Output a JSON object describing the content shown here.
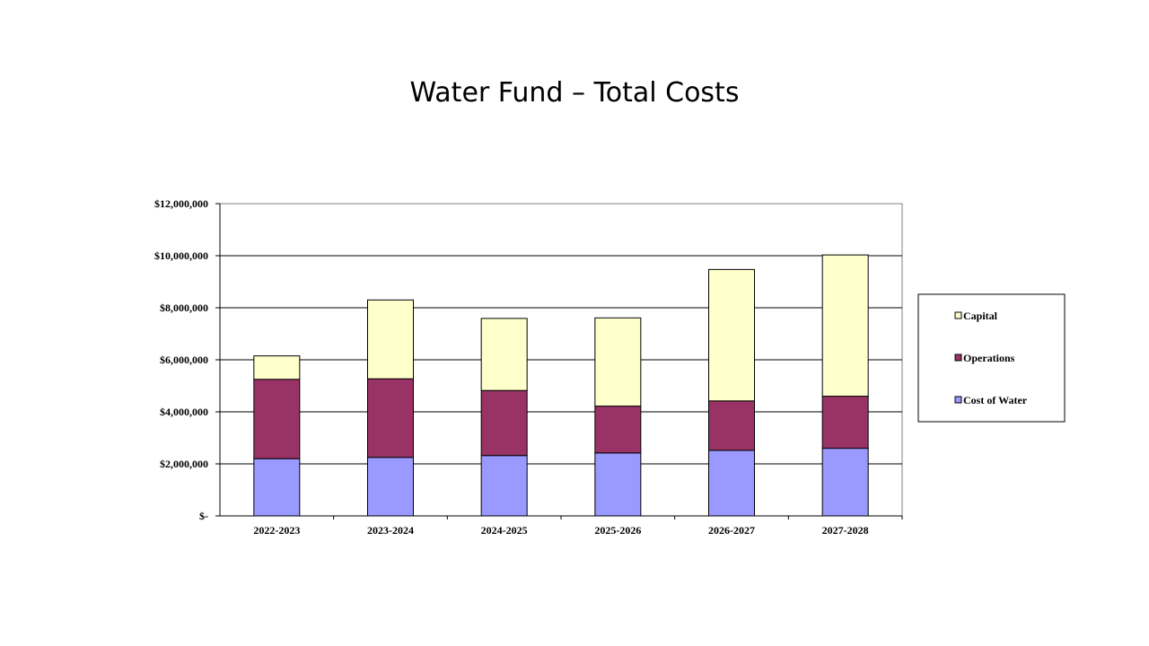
{
  "slide": {
    "title": "Water Fund – Total Costs"
  },
  "chart_data": {
    "type": "bar",
    "stacked": true,
    "categories": [
      "2022-2023",
      "2023-2024",
      "2024-2025",
      "2025-2026",
      "2026-2027",
      "2027-2028"
    ],
    "series": [
      {
        "name": "Cost of Water",
        "color": "#9999ff",
        "values": [
          2200000,
          2250000,
          2320000,
          2420000,
          2520000,
          2600000
        ]
      },
      {
        "name": "Operations",
        "color": "#993366",
        "values": [
          3050000,
          3020000,
          2500000,
          1800000,
          1900000,
          2000000
        ]
      },
      {
        "name": "Capital",
        "color": "#ffffcc",
        "values": [
          900000,
          3030000,
          2770000,
          3390000,
          5050000,
          5430000
        ]
      }
    ],
    "y_tick_labels": [
      "$-",
      "$2,000,000",
      "$4,000,000",
      "$6,000,000",
      "$8,000,000",
      "$10,000,000",
      "$12,000,000"
    ],
    "ylim": [
      0,
      12000000
    ],
    "y_tick_step": 2000000,
    "grid": true,
    "legend_position": "right",
    "legend_order": [
      "Capital",
      "Operations",
      "Cost of Water"
    ]
  }
}
